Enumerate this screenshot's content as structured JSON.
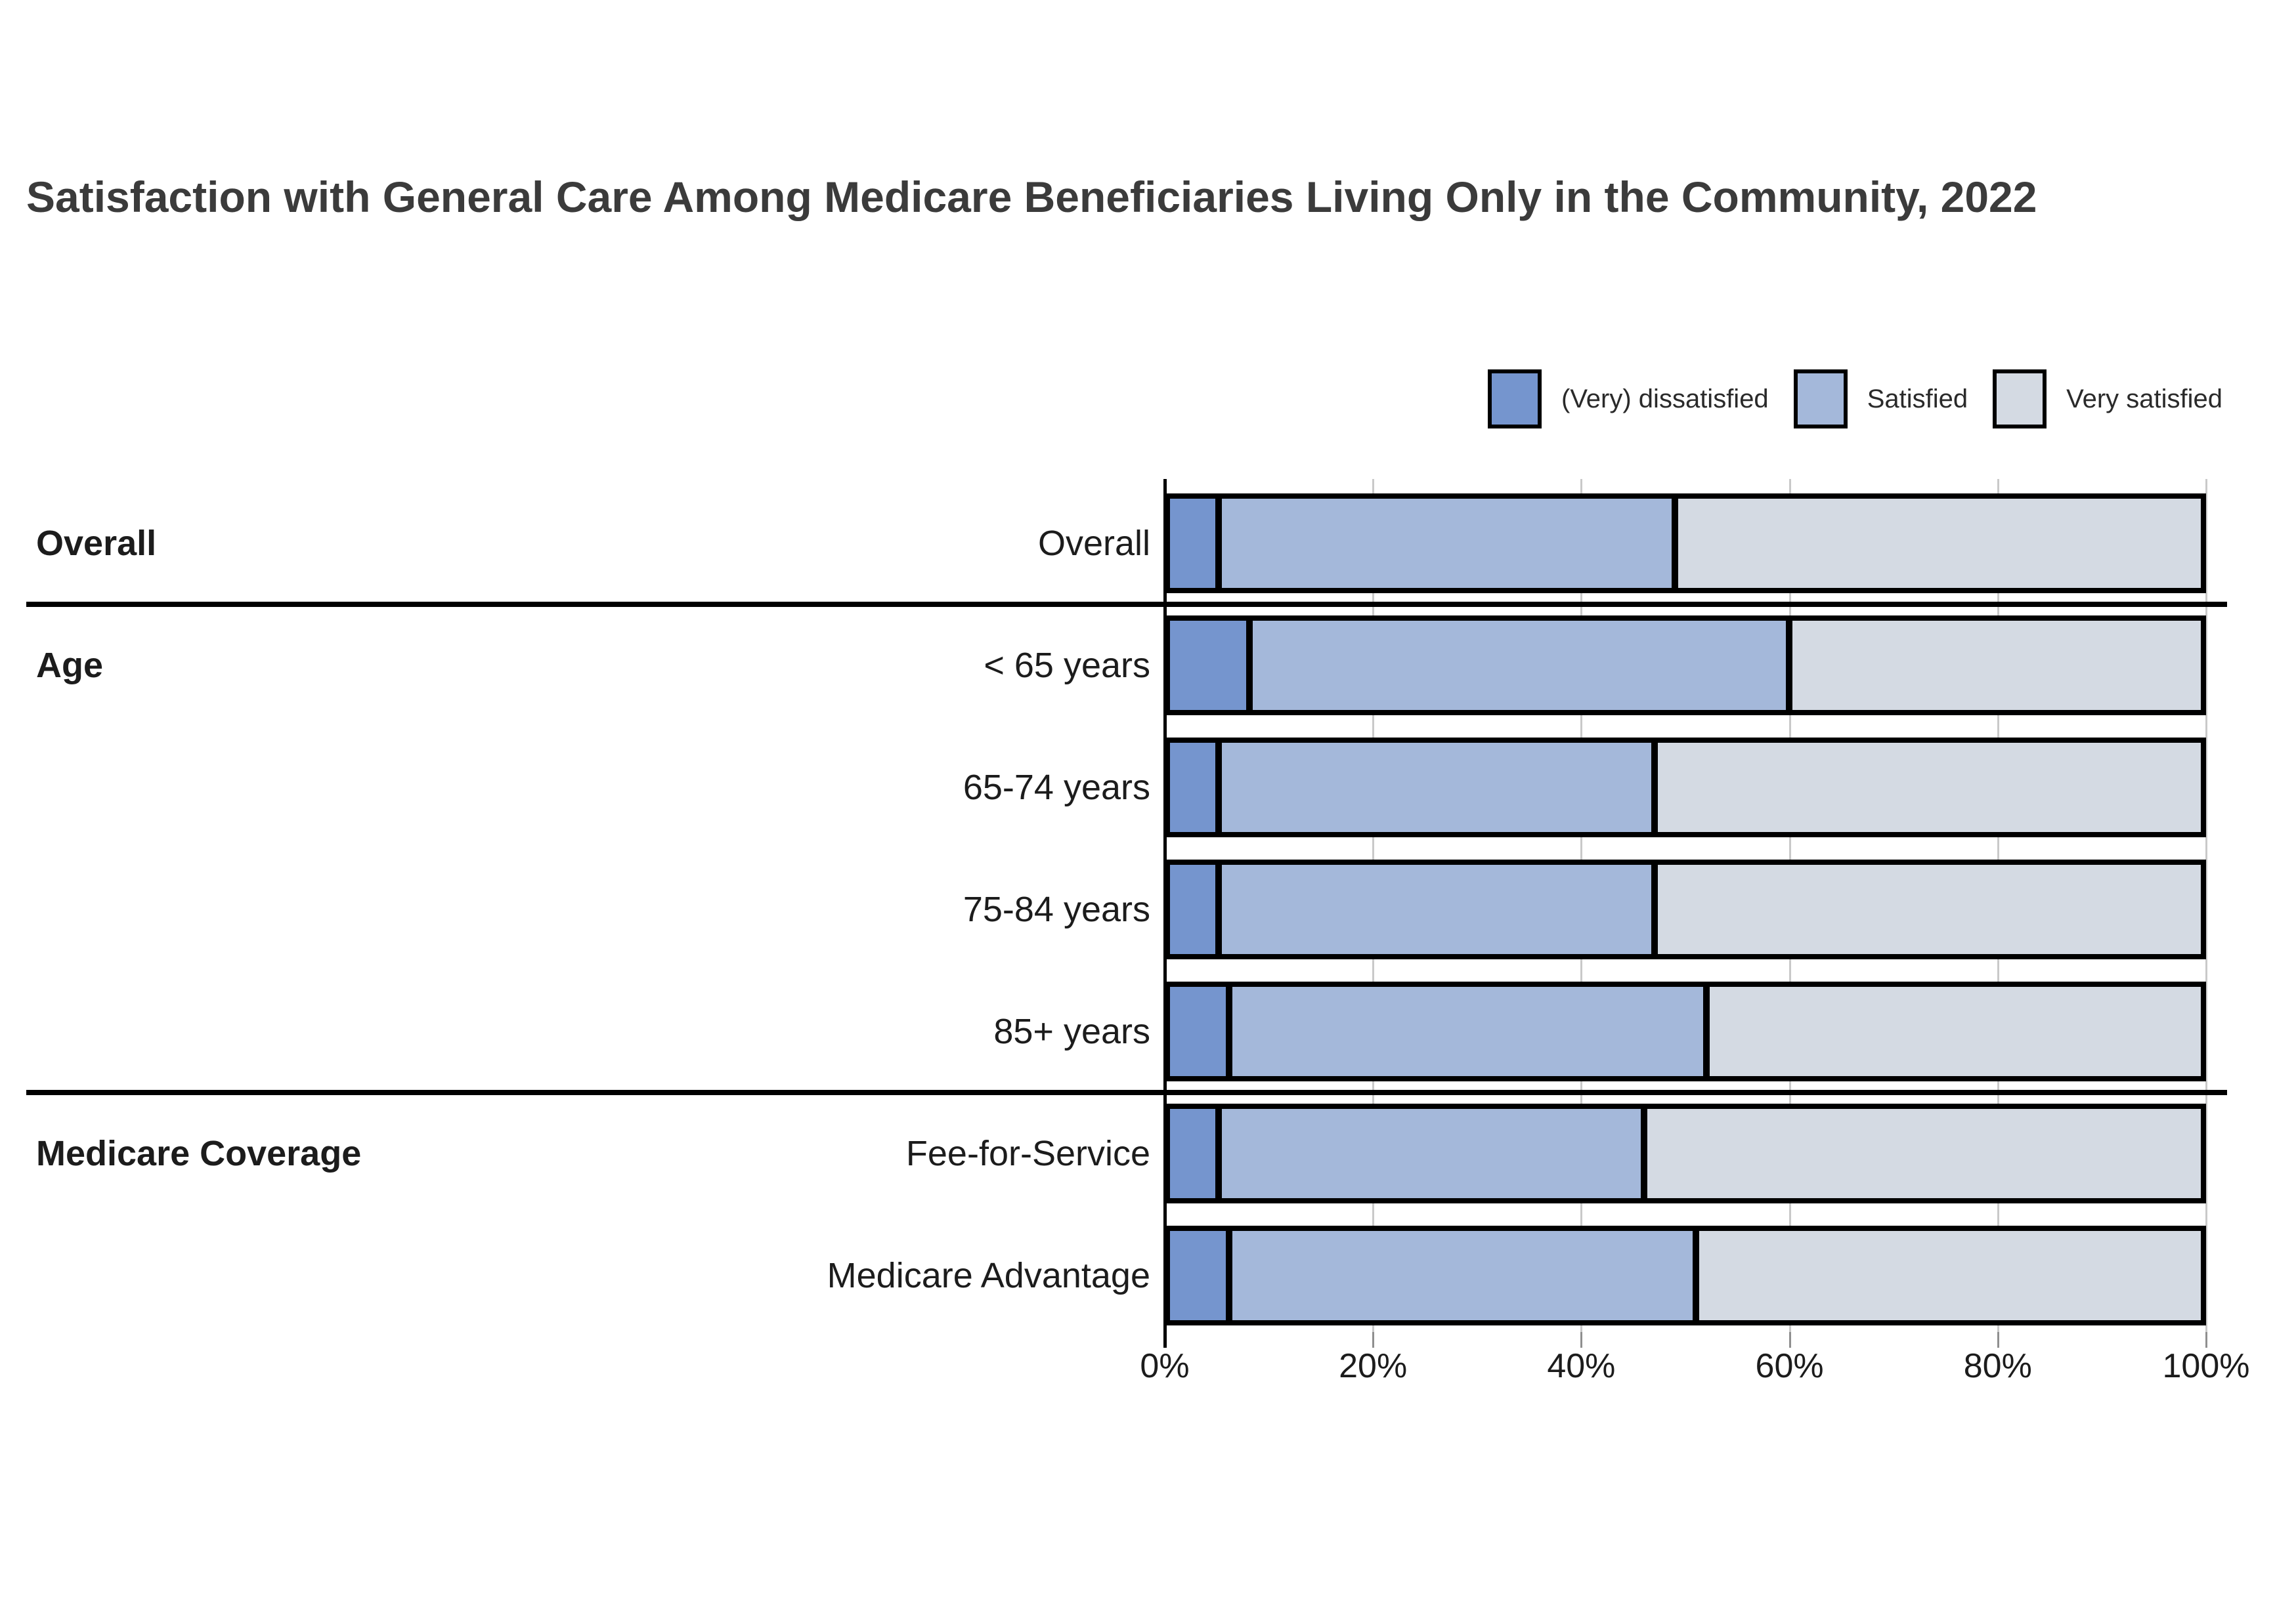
{
  "title": "Satisfaction with General Care Among Medicare Beneficiaries Living Only in the Community, 2022",
  "colors": {
    "dissatisfied": "#7595ce",
    "satisfied": "#a4b8da",
    "very_satisfied": "#d4dae3",
    "bar_border": "#000000",
    "gridline": "#c9c9c9",
    "axis": "#000000",
    "tick": "#8f8f8f",
    "label_text": "#1c1c1c",
    "title_text": "#3b3b3b"
  },
  "legend": {
    "items": [
      {
        "label": "(Very) dissatisfied",
        "color": "#7595ce"
      },
      {
        "label": "Satisfied",
        "color": "#a4b8da"
      },
      {
        "label": "Very satisfied",
        "color": "#d4dae3"
      }
    ]
  },
  "chart_data": {
    "type": "bar",
    "orientation": "horizontal",
    "stacked": true,
    "title": "Satisfaction with General Care Among Medicare Beneficiaries Living Only in the Community, 2022",
    "series": [
      "(Very) dissatisfied",
      "Satisfied",
      "Very satisfied"
    ],
    "x_axis": {
      "min": 0,
      "max": 100,
      "unit": "%",
      "tick_values": [
        0,
        20,
        40,
        60,
        80,
        100
      ],
      "tick_labels": [
        "0%",
        "20%",
        "40%",
        "60%",
        "80%",
        "100%"
      ]
    },
    "legend_position": "top-right",
    "grid": true,
    "groups": [
      {
        "group_label": "Overall",
        "rows": [
          {
            "label": "Overall",
            "values": [
              5,
              44,
              51
            ]
          }
        ]
      },
      {
        "group_label": "Age",
        "rows": [
          {
            "label": "< 65 years",
            "values": [
              8,
              52,
              40
            ]
          },
          {
            "label": "65-74 years",
            "values": [
              5,
              42,
              53
            ]
          },
          {
            "label": "75-84 years",
            "values": [
              5,
              42,
              53
            ]
          },
          {
            "label": "85+ years",
            "values": [
              6,
              46,
              48
            ]
          }
        ]
      },
      {
        "group_label": "Medicare Coverage",
        "rows": [
          {
            "label": "Fee-for-Service",
            "values": [
              5,
              41,
              54
            ]
          },
          {
            "label": "Medicare Advantage",
            "values": [
              6,
              45,
              49
            ]
          }
        ]
      }
    ]
  }
}
